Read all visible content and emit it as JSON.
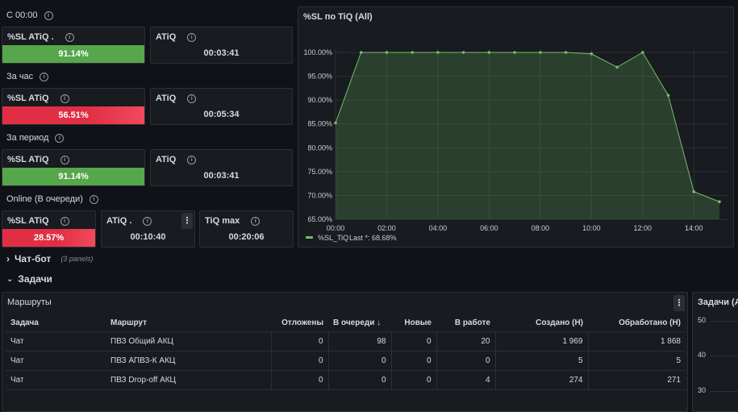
{
  "rows": [
    {
      "title": "С 00:00",
      "sl_title": "%SL ATiQ .",
      "sl_value": "91.14%",
      "atiq_title": "ATiQ",
      "atiq_value": "00:03:41"
    },
    {
      "title": "За час",
      "sl_title": "%SL ATiQ",
      "sl_value": "56.51%",
      "atiq_title": "ATiQ",
      "atiq_value": "00:05:34"
    },
    {
      "title": "За период",
      "sl_title": "%SL ATiQ",
      "sl_value": "91.14%",
      "atiq_title": "ATiQ",
      "atiq_value": "00:03:41"
    }
  ],
  "online": {
    "title": "Online (В очереди)",
    "sl_title": "%SL ATiQ",
    "sl_value": "28.57%",
    "atiq_title": "ATiQ .",
    "atiq_value": "00:10:40",
    "tiqmax_title": "TiQ max",
    "tiqmax_value": "00:20:06",
    "menu_glyph": "⋮"
  },
  "colors": {
    "green": "#56a64b",
    "red": "#e02f44",
    "series": "#73bf69"
  },
  "chart_data": {
    "type": "area",
    "title": "%SL по TiQ (All)",
    "x": [
      "00:00",
      "01:00",
      "02:00",
      "03:00",
      "04:00",
      "05:00",
      "06:00",
      "07:00",
      "08:00",
      "09:00",
      "10:00",
      "11:00",
      "12:00",
      "13:00",
      "14:00",
      "15:00"
    ],
    "x_ticks": [
      "00:00",
      "02:00",
      "04:00",
      "06:00",
      "08:00",
      "10:00",
      "12:00",
      "14:00"
    ],
    "y_ticks": [
      "100.00%",
      "95.00%",
      "90.00%",
      "85.00%",
      "80.00%",
      "75.00%",
      "70.00%",
      "65.00%"
    ],
    "ylim": [
      65,
      100
    ],
    "series": [
      {
        "name": "%SL_TiQ",
        "values": [
          85.2,
          100,
          100,
          100,
          100,
          100,
          100,
          100,
          100,
          100,
          99.7,
          96.9,
          100,
          91,
          70.8,
          68.68
        ]
      }
    ],
    "legend": {
      "series": "%SL_TiQ",
      "last_text": "Last *: 68.68%"
    },
    "legend_position": "bottom-left",
    "grid": true
  },
  "sections": {
    "chatbot": {
      "label": "Чат-бот",
      "sub": "(3 panels)",
      "chevron": "›"
    },
    "tasks": {
      "label": "Задачи",
      "chevron": "⌄"
    }
  },
  "routes": {
    "title": "Маршруты",
    "menu_glyph": "⋮",
    "columns": [
      "Задача",
      "Маршрут",
      "Отложены",
      "В очереди ↓",
      "Новые",
      "В работе",
      "Создано (Н)",
      "Обработано (Н)"
    ],
    "rows": [
      [
        "Чат",
        "ПВЗ Общий АКЦ",
        "0",
        "98",
        "0",
        "20",
        "1 969",
        "1 868"
      ],
      [
        "Чат",
        "ПВЗ АПВЗ-К АКЦ",
        "0",
        "0",
        "0",
        "0",
        "5",
        "5"
      ],
      [
        "Чат",
        "ПВЗ Drop-off АКЦ",
        "0",
        "0",
        "0",
        "4",
        "274",
        "271"
      ]
    ]
  },
  "tasks_panel": {
    "title": "Задачи (All",
    "y_ticks": [
      "50",
      "40",
      "30"
    ]
  }
}
